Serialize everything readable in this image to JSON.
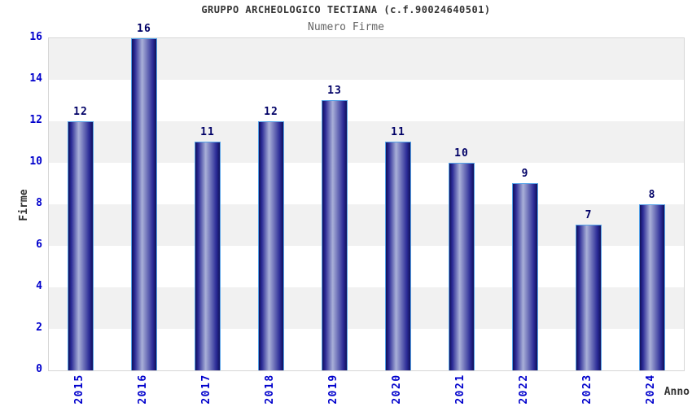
{
  "chart_data": {
    "type": "bar",
    "title": "GRUPPO ARCHEOLOGICO TECTIANA (c.f.90024640501)",
    "subtitle": "Numero Firme",
    "xlabel": "Anno",
    "ylabel": "Firme",
    "categories": [
      "2015",
      "2016",
      "2017",
      "2018",
      "2019",
      "2020",
      "2021",
      "2022",
      "2023",
      "2024"
    ],
    "values": [
      12,
      16,
      11,
      12,
      13,
      11,
      10,
      9,
      7,
      8
    ],
    "ylim": [
      0,
      16
    ],
    "ytick_step": 2,
    "grid": "alternating-horizontal-bands",
    "legend": "none"
  },
  "colors": {
    "title-color": "#333333",
    "subtitle-color": "#666666",
    "tick-blue": "#0000cc",
    "bar-label": "#000066",
    "bar-dark": "#10105a",
    "bar-light": "#a9b0d8",
    "bar-border": "#55a2e8",
    "band-gray": "#f1f1f1",
    "plot-border": "#d6d6d6",
    "axis-title-color": "#333333"
  }
}
